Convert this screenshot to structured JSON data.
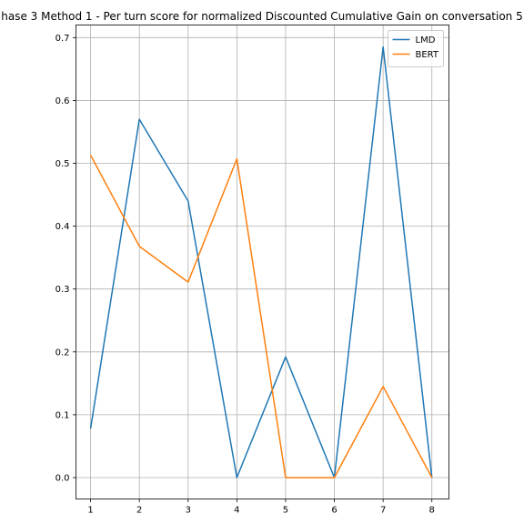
{
  "chart_data": {
    "type": "line",
    "title": "hase 3 Method 1 - Per turn score for normalized Discounted Cumulative Gain on conversation 5",
    "xlabel": "",
    "ylabel": "",
    "x": [
      1,
      2,
      3,
      4,
      5,
      6,
      7,
      8
    ],
    "xticks": [
      "1",
      "2",
      "3",
      "4",
      "5",
      "6",
      "7",
      "8"
    ],
    "yticks": [
      "0.0",
      "0.1",
      "0.2",
      "0.3",
      "0.4",
      "0.5",
      "0.6",
      "0.7"
    ],
    "xlim": [
      0.7,
      8.35
    ],
    "ylim": [
      -0.034,
      0.72
    ],
    "grid": true,
    "legend_position": "top-right",
    "series": [
      {
        "name": "LMD",
        "color": "#1f77b4",
        "values": [
          0.078,
          0.57,
          0.44,
          0.0,
          0.192,
          0.0,
          0.685,
          0.0
        ]
      },
      {
        "name": "BERT",
        "color": "#ff7f0e",
        "values": [
          0.513,
          0.368,
          0.311,
          0.507,
          0.0,
          0.0,
          0.145,
          0.0
        ]
      }
    ]
  }
}
